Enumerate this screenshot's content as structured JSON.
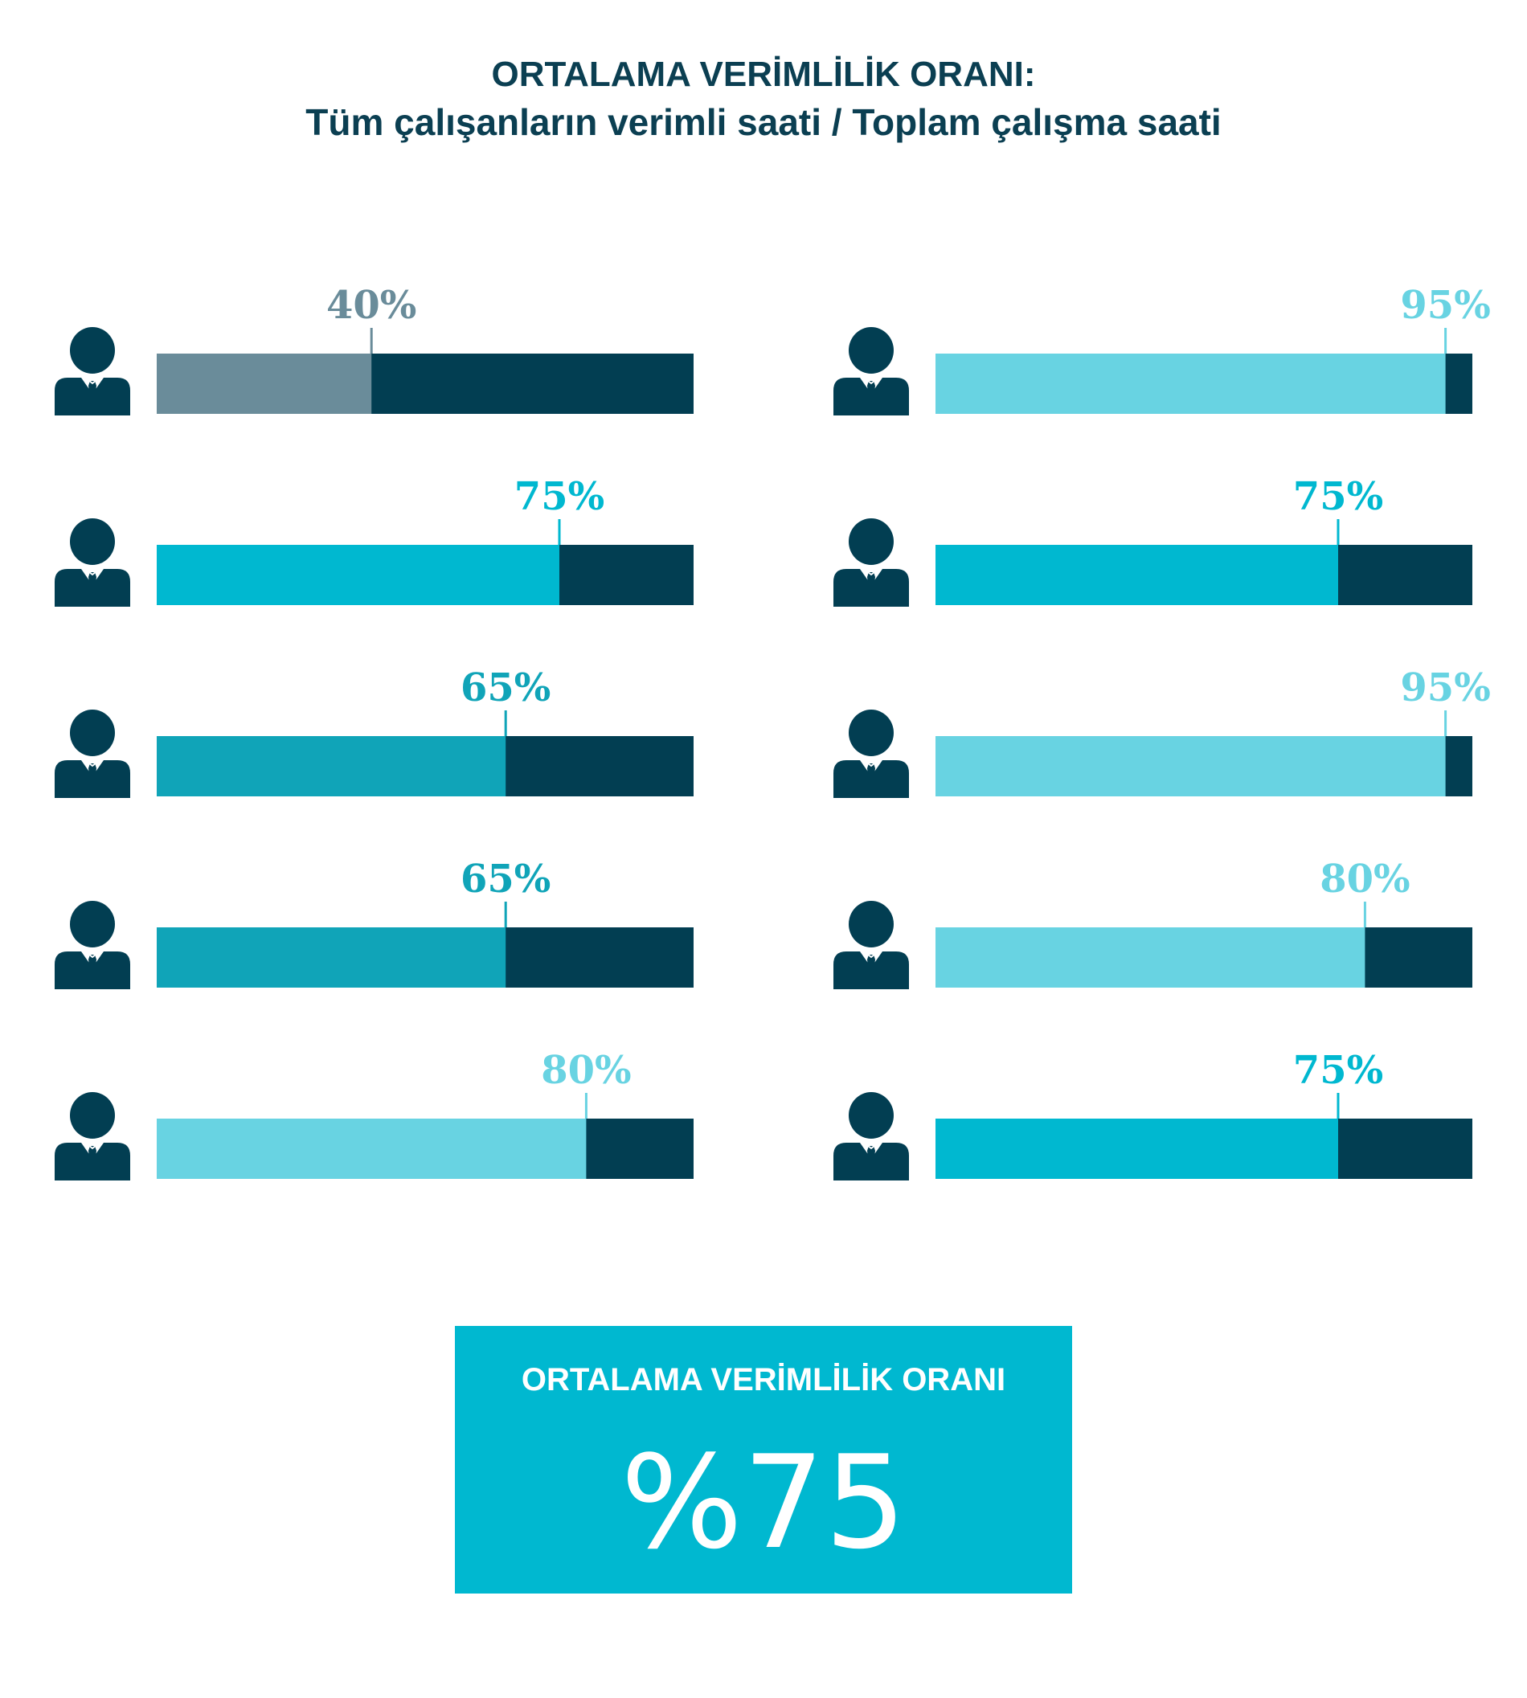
{
  "header": {
    "title": "ORTALAMA VERİMLİLİK ORANI:",
    "subtitle": "Tüm çalışanların verimli saati / Toplam çalışma saati"
  },
  "chart_data": {
    "type": "bar",
    "orientation": "horizontal",
    "layout": "two-columns",
    "xlim": [
      0,
      100
    ],
    "unit": "%",
    "remainder_color": "#023e52",
    "employees": [
      {
        "column": "left",
        "value": 40,
        "label": "40%",
        "color": "#6a8c9a",
        "icon": "businessman-icon"
      },
      {
        "column": "left",
        "value": 75,
        "label": "75%",
        "color": "#00b8d0",
        "icon": "businessman-icon"
      },
      {
        "column": "left",
        "value": 65,
        "label": "65%",
        "color": "#10a4b8",
        "icon": "businessman-icon"
      },
      {
        "column": "left",
        "value": 65,
        "label": "65%",
        "color": "#10a4b8",
        "icon": "businessman-icon"
      },
      {
        "column": "left",
        "value": 80,
        "label": "80%",
        "color": "#68d3e2",
        "icon": "businessman-icon"
      },
      {
        "column": "right",
        "value": 95,
        "label": "95%",
        "color": "#68d3e2",
        "icon": "businessman-icon"
      },
      {
        "column": "right",
        "value": 75,
        "label": "75%",
        "color": "#00b8d0",
        "icon": "businessman-icon"
      },
      {
        "column": "right",
        "value": 95,
        "label": "95%",
        "color": "#68d3e2",
        "icon": "businessman-icon"
      },
      {
        "column": "right",
        "value": 80,
        "label": "80%",
        "color": "#68d3e2",
        "icon": "businessman-icon"
      },
      {
        "column": "right",
        "value": 75,
        "label": "75%",
        "color": "#00b8d0",
        "icon": "businessman-icon"
      }
    ]
  },
  "summary": {
    "label": "ORTALAMA VERİMLİLİK ORANI",
    "value": "%75",
    "color": "#00b8d0"
  }
}
